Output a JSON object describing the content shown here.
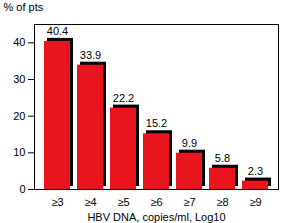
{
  "chart_data": {
    "type": "bar",
    "categories": [
      "≥3",
      "≥4",
      "≥5",
      "≥6",
      "≥7",
      "≥8",
      "≥9"
    ],
    "values": [
      40.4,
      33.9,
      22.2,
      15.2,
      9.9,
      5.8,
      2.3
    ],
    "color": "#e8141e",
    "x_label": "HBV DNA, copies/ml, Log10",
    "y_label": "% of pts",
    "ylim": [
      0,
      45
    ],
    "yticks": [
      0,
      10,
      20,
      30,
      40
    ],
    "data_labels": true,
    "grid": false
  }
}
